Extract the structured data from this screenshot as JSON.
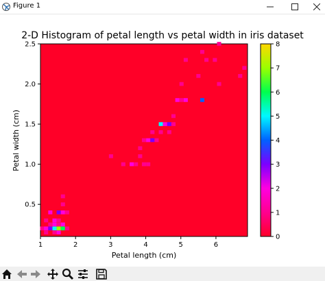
{
  "window": {
    "title": "Figure 1"
  },
  "icons": {
    "app": "matplotlib-app-icon",
    "minimize": "minimize-icon",
    "maximize": "maximize-icon",
    "close": "close-icon",
    "toolbar": [
      "home-icon",
      "back-arrow-icon",
      "forward-arrow-icon",
      "pan-icon",
      "zoom-icon",
      "configure-subplots-icon",
      "save-icon"
    ]
  },
  "chart_data": {
    "type": "heatmap",
    "title": "2-D Histogram of petal length vs petal width in iris dataset",
    "xlabel": "Petal length (cm)",
    "ylabel": "Petal width (cm)",
    "xlim": [
      1.0,
      6.9
    ],
    "ylim": [
      0.1,
      2.5
    ],
    "xticks": [
      1,
      2,
      3,
      4,
      5,
      6
    ],
    "yticks": [
      0.5,
      1.0,
      1.5,
      2.0,
      2.5
    ],
    "xtick_labels": [
      "1",
      "2",
      "3",
      "4",
      "5",
      "6"
    ],
    "ytick_labels": [
      "0.5",
      "1.0",
      "1.5",
      "2.0",
      "2.5"
    ],
    "colormap": "gist_rainbow_r",
    "colorbar": {
      "min": 0,
      "max": 8,
      "ticks": [
        0,
        1,
        2,
        3,
        4,
        5,
        6,
        7,
        8
      ],
      "tick_labels": [
        "0",
        "1",
        "2",
        "3",
        "4",
        "5",
        "6",
        "7",
        "8"
      ]
    },
    "background_color": "#ff0028",
    "bins_x": 50,
    "bins_y": 50,
    "cells": [
      {
        "x": 1.05,
        "y": 0.2,
        "count": 1
      },
      {
        "x": 1.16,
        "y": 0.2,
        "count": 2
      },
      {
        "x": 1.28,
        "y": 0.2,
        "count": 3
      },
      {
        "x": 1.4,
        "y": 0.2,
        "count": 5
      },
      {
        "x": 1.52,
        "y": 0.2,
        "count": 7
      },
      {
        "x": 1.64,
        "y": 0.2,
        "count": 6
      },
      {
        "x": 1.76,
        "y": 0.2,
        "count": 1
      },
      {
        "x": 1.16,
        "y": 0.15,
        "count": 1
      },
      {
        "x": 1.4,
        "y": 0.15,
        "count": 1
      },
      {
        "x": 1.52,
        "y": 0.15,
        "count": 2
      },
      {
        "x": 1.28,
        "y": 0.25,
        "count": 1
      },
      {
        "x": 1.4,
        "y": 0.25,
        "count": 2
      },
      {
        "x": 1.52,
        "y": 0.25,
        "count": 1
      },
      {
        "x": 1.64,
        "y": 0.25,
        "count": 2
      },
      {
        "x": 1.16,
        "y": 0.3,
        "count": 1
      },
      {
        "x": 1.4,
        "y": 0.3,
        "count": 2
      },
      {
        "x": 1.52,
        "y": 0.3,
        "count": 1
      },
      {
        "x": 1.28,
        "y": 0.4,
        "count": 2
      },
      {
        "x": 1.52,
        "y": 0.4,
        "count": 3
      },
      {
        "x": 1.64,
        "y": 0.4,
        "count": 2
      },
      {
        "x": 1.76,
        "y": 0.4,
        "count": 1
      },
      {
        "x": 1.64,
        "y": 0.5,
        "count": 1
      },
      {
        "x": 1.64,
        "y": 0.6,
        "count": 1
      },
      {
        "x": 3.01,
        "y": 1.1,
        "count": 1
      },
      {
        "x": 3.36,
        "y": 1.0,
        "count": 1
      },
      {
        "x": 3.6,
        "y": 1.0,
        "count": 2
      },
      {
        "x": 3.72,
        "y": 1.0,
        "count": 1
      },
      {
        "x": 3.84,
        "y": 1.1,
        "count": 1
      },
      {
        "x": 3.84,
        "y": 1.2,
        "count": 1
      },
      {
        "x": 3.95,
        "y": 1.0,
        "count": 1
      },
      {
        "x": 3.95,
        "y": 1.3,
        "count": 1
      },
      {
        "x": 4.07,
        "y": 1.0,
        "count": 1
      },
      {
        "x": 4.07,
        "y": 1.3,
        "count": 2
      },
      {
        "x": 4.19,
        "y": 1.3,
        "count": 3
      },
      {
        "x": 4.31,
        "y": 1.3,
        "count": 1
      },
      {
        "x": 4.19,
        "y": 1.4,
        "count": 1
      },
      {
        "x": 4.43,
        "y": 1.4,
        "count": 1
      },
      {
        "x": 4.43,
        "y": 1.5,
        "count": 5
      },
      {
        "x": 4.55,
        "y": 1.5,
        "count": 2
      },
      {
        "x": 4.67,
        "y": 1.4,
        "count": 1
      },
      {
        "x": 4.67,
        "y": 1.5,
        "count": 3
      },
      {
        "x": 4.79,
        "y": 1.5,
        "count": 1
      },
      {
        "x": 4.79,
        "y": 1.6,
        "count": 1
      },
      {
        "x": 4.9,
        "y": 1.8,
        "count": 2
      },
      {
        "x": 5.02,
        "y": 1.8,
        "count": 1
      },
      {
        "x": 5.02,
        "y": 2.0,
        "count": 1
      },
      {
        "x": 5.14,
        "y": 1.8,
        "count": 2
      },
      {
        "x": 5.14,
        "y": 2.3,
        "count": 1
      },
      {
        "x": 5.5,
        "y": 2.1,
        "count": 1
      },
      {
        "x": 5.61,
        "y": 1.8,
        "count": 4
      },
      {
        "x": 5.61,
        "y": 2.4,
        "count": 1
      },
      {
        "x": 5.73,
        "y": 2.3,
        "count": 1
      },
      {
        "x": 5.97,
        "y": 2.3,
        "count": 1
      },
      {
        "x": 6.09,
        "y": 2.0,
        "count": 1
      },
      {
        "x": 6.09,
        "y": 2.5,
        "count": 1
      },
      {
        "x": 6.69,
        "y": 2.1,
        "count": 1
      },
      {
        "x": 6.81,
        "y": 2.2,
        "count": 1
      }
    ]
  }
}
